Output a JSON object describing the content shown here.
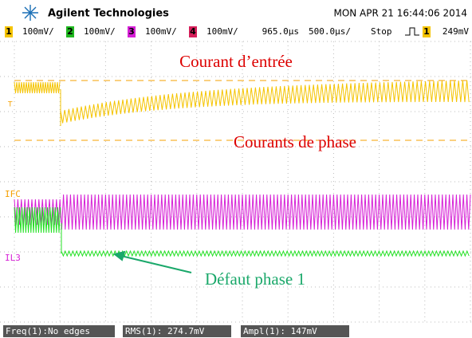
{
  "header": {
    "brand": "Agilent Technologies",
    "datetime": "MON APR 21 16:44:06 2014"
  },
  "channel_bar": {
    "channels": [
      {
        "number": "1",
        "scale": "100mV/"
      },
      {
        "number": "2",
        "scale": "100mV/"
      },
      {
        "number": "3",
        "scale": "100mV/"
      },
      {
        "number": "4",
        "scale": "100mV/"
      }
    ],
    "delay": "965.0µs",
    "timebase": "500.0µs/",
    "status": "Stop",
    "trigger_channel": "1",
    "trigger_level": "249mV"
  },
  "markers": {
    "trigger": "T",
    "ifc": "IFC",
    "il3": "IL3"
  },
  "annotations": {
    "input_current": "Courant d’entrée",
    "phase_currents": "Courants de phase",
    "fault": "Défaut phase 1"
  },
  "measurements": [
    "Freq(1):No edges",
    "RMS(1): 274.7mV",
    "Ampl(1): 147mV"
  ]
}
